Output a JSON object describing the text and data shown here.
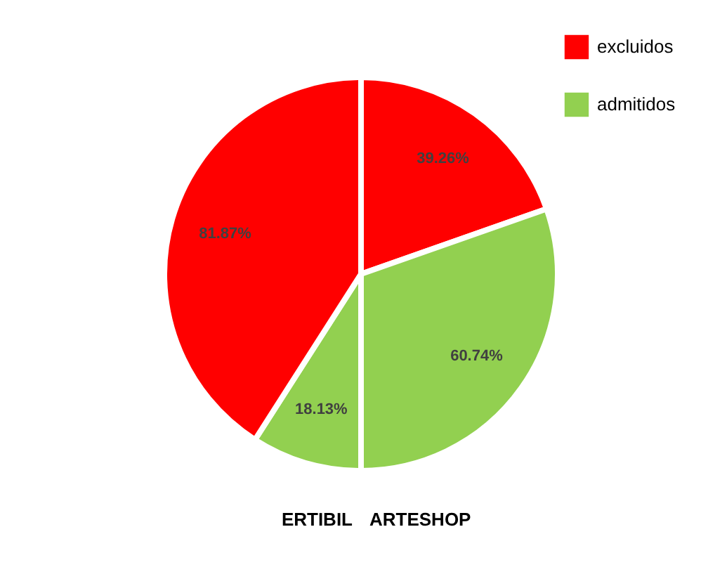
{
  "chart_data": {
    "type": "pie",
    "categories": [
      "excluidos",
      "admitidos",
      null,
      null
    ],
    "values": [
      39.26,
      60.74,
      18.13,
      81.87
    ],
    "colors": [
      "#ff0000",
      "#92d050",
      "#92d050",
      "#ff0000"
    ],
    "value_labels": [
      "39.26%",
      "60.74%",
      "18.13%",
      "81.87%"
    ],
    "annotations": [
      "ERTIBIL",
      "ARTESHOP"
    ],
    "legend": "top right"
  }
}
